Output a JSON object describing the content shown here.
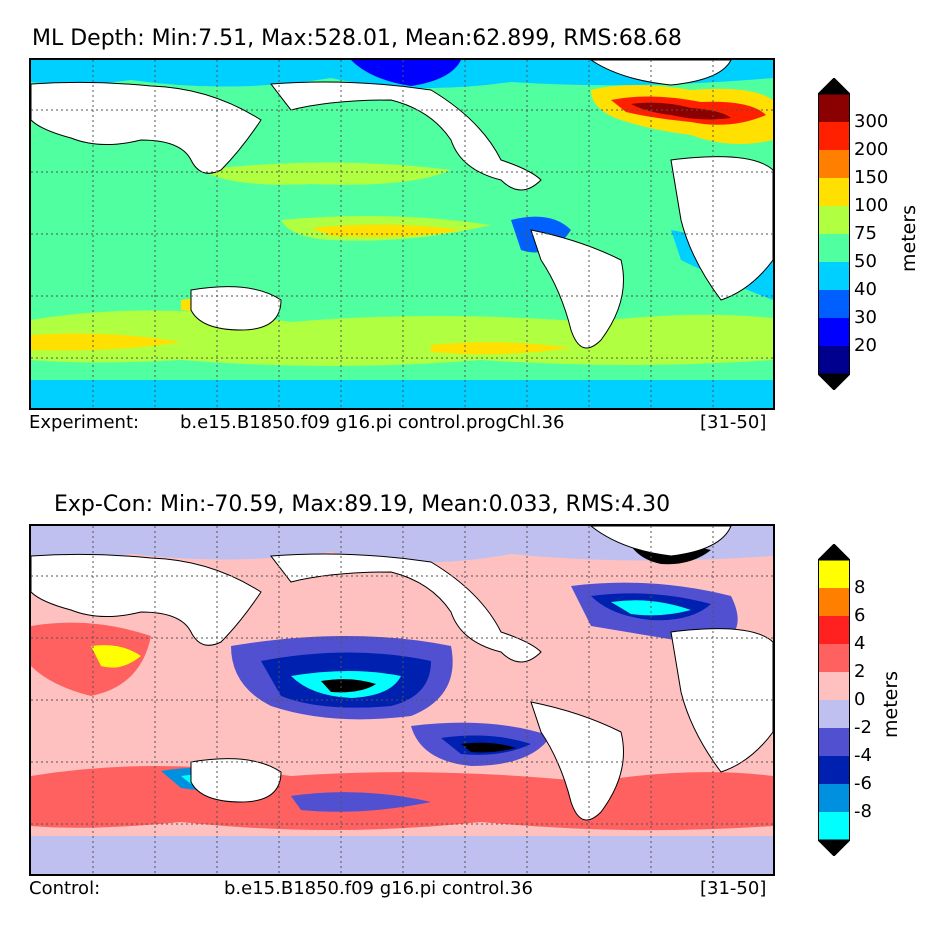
{
  "panel_top": {
    "title": "ML Depth: Min:7.51, Max:528.01, Mean:62.899, RMS:68.68",
    "caption_left": "Experiment:",
    "caption_mid": "b.e15.B1850.f09 g16.pi control.progChl.36",
    "caption_right": "[31-50]",
    "colorbar": {
      "units": "meters",
      "ticks": [
        "20",
        "30",
        "40",
        "50",
        "75",
        "100",
        "150",
        "200",
        "300"
      ],
      "colors": [
        "#00008f",
        "#0000ff",
        "#0060ff",
        "#00d0ff",
        "#50ffa0",
        "#b0ff40",
        "#ffe000",
        "#ff8000",
        "#ff2000",
        "#8b0000"
      ],
      "under_color": "#000000",
      "over_color": "#000000"
    }
  },
  "panel_bottom": {
    "title": "Exp-Con: Min:-70.59, Max:89.19, Mean:0.033, RMS:4.30",
    "caption_left": "Control:",
    "caption_mid": "b.e15.B1850.f09 g16.pi control.36",
    "caption_right": "[31-50]",
    "colorbar": {
      "units": "meters",
      "ticks": [
        "-8",
        "-6",
        "-4",
        "-2",
        "0",
        "2",
        "4",
        "6",
        "8"
      ],
      "colors": [
        "#00ffff",
        "#0090e0",
        "#0020b0",
        "#5050d0",
        "#c0c0f0",
        "#ffc0c0",
        "#ff6060",
        "#ff2020",
        "#ff8000",
        "#ffff00"
      ],
      "under_color": "#000000",
      "over_color": "#000000"
    }
  }
}
